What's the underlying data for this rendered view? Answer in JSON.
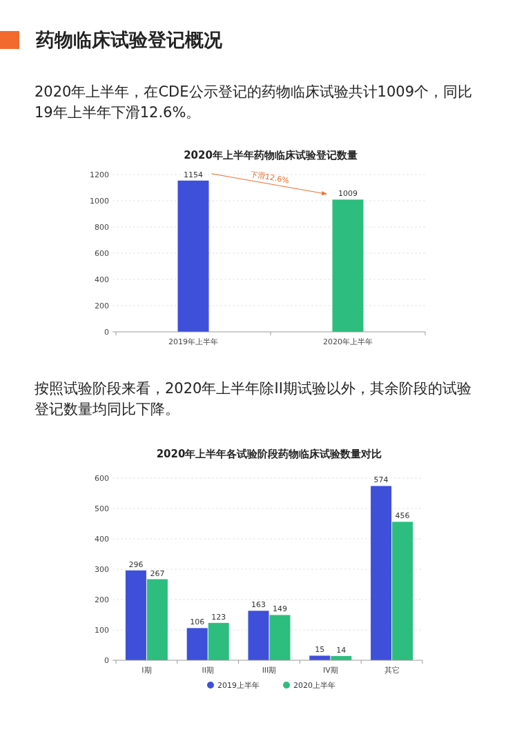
{
  "chart_data": [
    {
      "type": "bar",
      "title": "2020年上半年药物临床试验登记数量",
      "annotations": [
        "药物临床试验登记概况",
        "2020年上半年，在CDE公示登记的药物临床试验共计1009个，同比19年上半年下滑12.6%。",
        "下滑12.6%"
      ],
      "categories": [
        "2019年上半年",
        "2020年上半年"
      ],
      "values": [
        1154,
        1009
      ],
      "colors": [
        "#3e4fd9",
        "#2dbd7e"
      ],
      "ylim": [
        0,
        1200
      ],
      "yticks": [
        0,
        200,
        400,
        600,
        800,
        1000,
        1200
      ],
      "grid": "y",
      "data_labels": true
    },
    {
      "type": "bar",
      "title": "2020年上半年各试验阶段药物临床试验数量对比",
      "annotations": [
        "按照试验阶段来看，2020年上半年除II期试验以外，其余阶段的试验登记数量均同比下降。"
      ],
      "categories": [
        "I期",
        "II期",
        "III期",
        "IV期",
        "其它"
      ],
      "series": [
        {
          "name": "2019上半年",
          "color": "#3e4fd9",
          "values": [
            296,
            106,
            163,
            15,
            574
          ]
        },
        {
          "name": "2020上半年",
          "color": "#2dbd7e",
          "values": [
            267,
            123,
            149,
            14,
            456
          ]
        }
      ],
      "ylim": [
        0,
        600
      ],
      "yticks": [
        0,
        100,
        200,
        300,
        400,
        500,
        600
      ],
      "grid": "y",
      "data_labels": true,
      "legend": "bottom"
    }
  ]
}
